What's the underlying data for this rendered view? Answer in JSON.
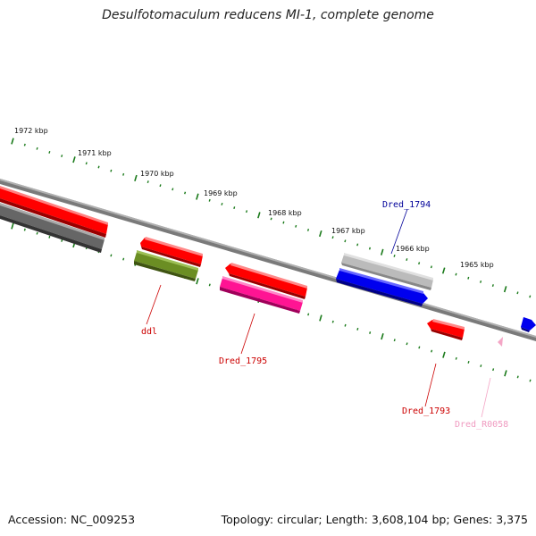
{
  "title": "Desulfotomaculum reducens MI-1, complete genome",
  "footer": {
    "accession": "Accession: NC_009253",
    "topology": "Topology: circular; Length: 3,608,104 bp; Genes: 3,375"
  },
  "ticks": [
    "1972 kbp",
    "1971 kbp",
    "1970 kbp",
    "1969 kbp",
    "1968 kbp",
    "1967 kbp",
    "1966 kbp",
    "1965 kbp"
  ],
  "colors": {
    "tick_green": "#1a7a1a",
    "backbone": "#888888",
    "red": "#ee0000",
    "grey": "#666666",
    "olive": "#6b8e23",
    "magenta": "#ff1493",
    "silver": "#b8b8b8",
    "blue": "#0000dd",
    "pink": "#f4a6c6"
  },
  "genes": [
    {
      "name": "ddl",
      "color": "#cc0000"
    },
    {
      "name": "Dred_1795",
      "color": "#cc0000"
    },
    {
      "name": "Dred_1794",
      "color": "#000099"
    },
    {
      "name": "Dred_1793",
      "color": "#cc0000"
    },
    {
      "name": "Dred_R0058",
      "color": "#f09ac0"
    }
  ]
}
